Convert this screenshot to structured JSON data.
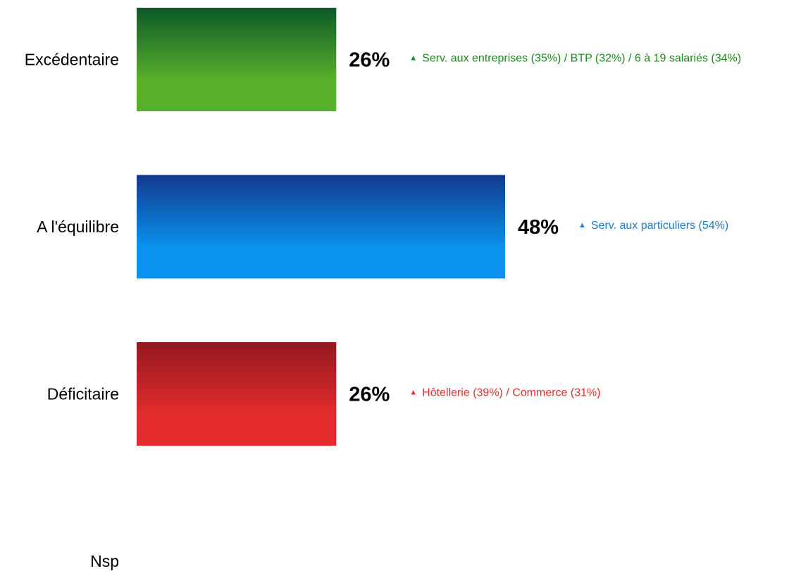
{
  "chart_data": {
    "type": "bar",
    "orientation": "horizontal",
    "categories": [
      "Excédentaire",
      "A l'équilibre",
      "Déficitaire",
      "Nsp"
    ],
    "values": [
      26,
      48,
      26,
      0
    ],
    "value_labels": [
      "26%",
      "48%",
      "26%",
      ""
    ],
    "xlim": [
      0,
      100
    ],
    "title": "",
    "xlabel": "",
    "ylabel": "",
    "grid": false,
    "legend": "none",
    "annotations": [
      {
        "marker": "▲",
        "text": "Serv. aux entreprises (35%) / BTP (32%) / 6 à 19 salariés (34%)",
        "color": "#1a8a1a"
      },
      {
        "marker": "▲",
        "text": "Serv. aux particuliers (54%)",
        "color": "#1a7ac8"
      },
      {
        "marker": "▲",
        "text": "Hôtellerie (39%) / Commerce (31%)",
        "color": "#e03030"
      },
      {
        "marker": "",
        "text": "",
        "color": "#000000"
      }
    ],
    "bar_gradients": [
      {
        "top": "#0c5a28",
        "bottom": "#58b02a"
      },
      {
        "top": "#123a8c",
        "bottom": "#0a92ee"
      },
      {
        "top": "#921820",
        "bottom": "#e42c2c"
      },
      {
        "top": "#888888",
        "bottom": "#bbbbbb"
      }
    ]
  }
}
